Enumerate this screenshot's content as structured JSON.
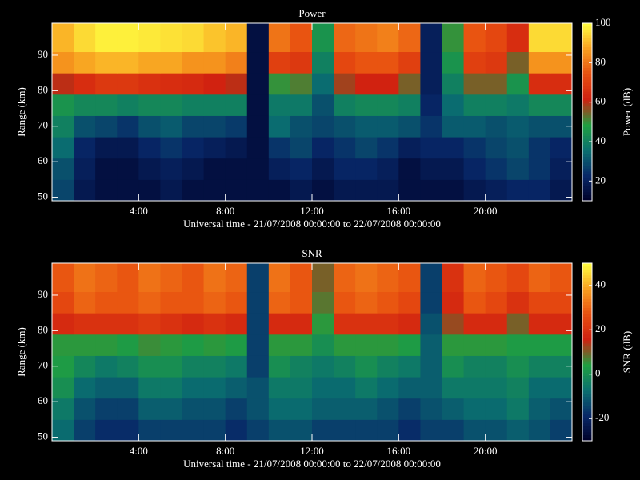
{
  "chart_data": [
    {
      "type": "heatmap",
      "title": "Power",
      "xlabel": "Universal time - 21/07/2008 00:00:00 to 22/07/2008 00:00:00",
      "ylabel": "Range (km)",
      "clabel": "Power (dB)",
      "x": [
        0.5,
        1.5,
        2.5,
        3.5,
        4.5,
        5.5,
        6.5,
        7.5,
        8.5,
        9.5,
        10.5,
        11.5,
        12.5,
        13.5,
        14.5,
        15.5,
        16.5,
        17.5,
        18.5,
        19.5,
        20.5,
        21.5,
        22.5,
        23.5
      ],
      "y": [
        52,
        58,
        64,
        70,
        76,
        82,
        88,
        94
      ],
      "z": [
        [
          28,
          18,
          15,
          15,
          15,
          18,
          15,
          15,
          15,
          15,
          15,
          18,
          15,
          18,
          18,
          18,
          15,
          15,
          15,
          18,
          20,
          22,
          22,
          18
        ],
        [
          30,
          20,
          15,
          15,
          18,
          20,
          18,
          15,
          15,
          15,
          20,
          22,
          18,
          22,
          22,
          20,
          15,
          18,
          18,
          22,
          25,
          28,
          25,
          20
        ],
        [
          35,
          22,
          18,
          18,
          22,
          25,
          22,
          20,
          18,
          15,
          25,
          28,
          22,
          25,
          28,
          25,
          20,
          22,
          22,
          25,
          28,
          30,
          25,
          22
        ],
        [
          40,
          30,
          28,
          25,
          30,
          32,
          28,
          28,
          26,
          15,
          35,
          30,
          28,
          30,
          32,
          32,
          30,
          25,
          32,
          32,
          30,
          32,
          30,
          30
        ],
        [
          45,
          42,
          42,
          40,
          42,
          42,
          40,
          40,
          40,
          15,
          38,
          38,
          30,
          40,
          42,
          42,
          40,
          22,
          35,
          40,
          40,
          38,
          42,
          42
        ],
        [
          60,
          65,
          68,
          68,
          66,
          65,
          64,
          62,
          60,
          15,
          50,
          52,
          35,
          58,
          62,
          62,
          55,
          20,
          40,
          55,
          55,
          45,
          65,
          65
        ],
        [
          85,
          88,
          90,
          90,
          88,
          88,
          85,
          85,
          82,
          15,
          70,
          68,
          40,
          72,
          75,
          75,
          70,
          20,
          45,
          70,
          68,
          55,
          85,
          85
        ],
        [
          90,
          95,
          98,
          98,
          97,
          96,
          95,
          92,
          90,
          15,
          80,
          75,
          45,
          78,
          80,
          82,
          78,
          20,
          50,
          75,
          72,
          65,
          95,
          95
        ]
      ],
      "xlim": [
        0,
        24
      ],
      "ylim": [
        49,
        99
      ],
      "clim": [
        10,
        100
      ],
      "xticks": [
        {
          "value": 4,
          "label": "4:00"
        },
        {
          "value": 8,
          "label": "8:00"
        },
        {
          "value": 12,
          "label": "12:00"
        },
        {
          "value": 16,
          "label": "16:00"
        },
        {
          "value": 20,
          "label": "20:00"
        }
      ],
      "yticks": [
        50,
        60,
        70,
        80,
        90
      ],
      "cticks": [
        20,
        40,
        60,
        80,
        100
      ],
      "colormap": [
        "#000028",
        "#082868",
        "#0a7070",
        "#20a040",
        "#d02010",
        "#e85010",
        "#f8a020",
        "#ffff40"
      ]
    },
    {
      "type": "heatmap",
      "title": "SNR",
      "xlabel": "Universal time - 21/07/2008 00:00:00 to 22/07/2008 00:00:00",
      "ylabel": "Range (km)",
      "clabel": "SNR (dB)",
      "x": [
        0.5,
        1.5,
        2.5,
        3.5,
        4.5,
        5.5,
        6.5,
        7.5,
        8.5,
        9.5,
        10.5,
        11.5,
        12.5,
        13.5,
        14.5,
        15.5,
        16.5,
        17.5,
        18.5,
        19.5,
        20.5,
        21.5,
        22.5,
        23.5
      ],
      "y": [
        52,
        58,
        64,
        70,
        76,
        82,
        88,
        94
      ],
      "z": [
        [
          -8,
          -15,
          -18,
          -18,
          -15,
          -15,
          -15,
          -15,
          -18,
          -15,
          -12,
          -12,
          -15,
          -15,
          -15,
          -15,
          -18,
          -15,
          -15,
          -12,
          -12,
          -10,
          -12,
          -15
        ],
        [
          -5,
          -12,
          -15,
          -15,
          -10,
          -10,
          -12,
          -12,
          -15,
          -12,
          -8,
          -8,
          -10,
          -10,
          -10,
          -12,
          -15,
          -12,
          -10,
          -8,
          -8,
          -5,
          -10,
          -12
        ],
        [
          0,
          -8,
          -10,
          -10,
          -5,
          -5,
          -8,
          -8,
          -10,
          -12,
          -5,
          -5,
          -8,
          -8,
          -5,
          -8,
          -10,
          -10,
          -5,
          -5,
          -5,
          -3,
          -8,
          -8
        ],
        [
          3,
          -2,
          -5,
          -3,
          0,
          0,
          -3,
          -3,
          -5,
          -15,
          0,
          -3,
          -5,
          -3,
          0,
          -3,
          -5,
          -10,
          0,
          -3,
          -3,
          0,
          -3,
          -3
        ],
        [
          5,
          5,
          5,
          3,
          6,
          5,
          3,
          5,
          3,
          -15,
          5,
          5,
          0,
          5,
          5,
          5,
          3,
          -10,
          5,
          5,
          5,
          3,
          3,
          3
        ],
        [
          18,
          20,
          20,
          20,
          22,
          20,
          18,
          20,
          18,
          -15,
          18,
          18,
          5,
          20,
          20,
          20,
          18,
          -12,
          12,
          18,
          18,
          10,
          18,
          18
        ],
        [
          25,
          30,
          28,
          28,
          30,
          28,
          28,
          30,
          28,
          -15,
          30,
          28,
          8,
          28,
          30,
          28,
          25,
          -15,
          18,
          28,
          25,
          20,
          25,
          25
        ],
        [
          28,
          32,
          30,
          28,
          32,
          30,
          28,
          32,
          30,
          -15,
          32,
          28,
          10,
          30,
          32,
          30,
          28,
          -15,
          20,
          30,
          28,
          25,
          30,
          28
        ]
      ],
      "xlim": [
        0,
        24
      ],
      "ylim": [
        49,
        99
      ],
      "clim": [
        -30,
        50
      ],
      "xticks": [
        {
          "value": 4,
          "label": "4:00"
        },
        {
          "value": 8,
          "label": "8:00"
        },
        {
          "value": 12,
          "label": "12:00"
        },
        {
          "value": 16,
          "label": "16:00"
        },
        {
          "value": 20,
          "label": "20:00"
        }
      ],
      "yticks": [
        50,
        60,
        70,
        80,
        90
      ],
      "cticks": [
        -20,
        0,
        20,
        40
      ],
      "colormap": [
        "#000028",
        "#082868",
        "#0a7070",
        "#20a040",
        "#d02010",
        "#e85010",
        "#f8a020",
        "#ffff40"
      ]
    }
  ]
}
